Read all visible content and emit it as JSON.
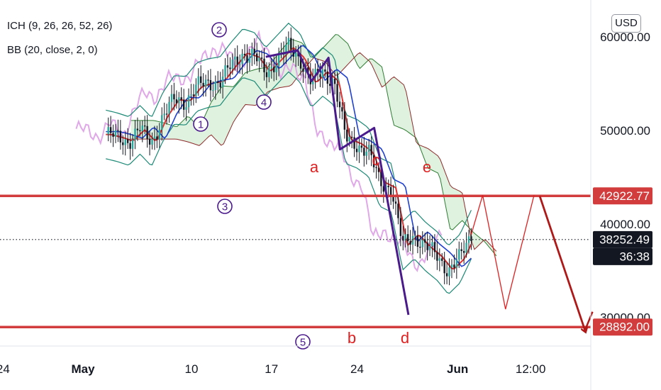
{
  "indicators": {
    "ichimoku": "ICH (9, 26, 26, 52, 26)",
    "bollinger": "BB (20, close, 2, 0)"
  },
  "currency_button": "USD",
  "colors": {
    "level_line": "#d23c3c",
    "projection": "#e02020",
    "wave": "#4a1a8c",
    "arrow": "#b01818",
    "candle": "#131722",
    "price_badge_dark": "#131722"
  },
  "chart_data": {
    "type": "candlestick",
    "x_ticks": [
      "24",
      "May",
      "10",
      "17",
      "24",
      "Jun",
      "12:00"
    ],
    "y_ticks": [
      60000,
      50000,
      40000,
      30000
    ],
    "ylim": [
      27300,
      63000
    ],
    "grid": false,
    "horizontal_levels": [
      42922.77,
      28892.0
    ],
    "price_badges": [
      {
        "label": "42922.77",
        "value": 42922.77,
        "style": "red"
      },
      {
        "label": "38252.49",
        "value": 38252.49,
        "style": "dark"
      },
      {
        "label": "36:38",
        "style": "dark"
      },
      {
        "label": "28892.00",
        "value": 28892.0,
        "style": "red"
      }
    ],
    "current_price": 38252.49,
    "elliott_waves": [
      {
        "label": "1",
        "date": "May 10.5",
        "value": 51500
      },
      {
        "label": "2",
        "date": "May 12",
        "value": 62200
      },
      {
        "label": "3",
        "date": "May 13",
        "value": 42200
      },
      {
        "label": "4",
        "date": "May 16",
        "value": 53400
      },
      {
        "label": "5",
        "date": "May 19",
        "value": 27500
      }
    ],
    "correction_labels": [
      "a",
      "b",
      "c",
      "d",
      "e"
    ],
    "series": [
      {
        "name": "price",
        "values": [
          [
            -7.5,
            49500
          ],
          [
            -6.5,
            49200
          ],
          [
            -5.5,
            48800
          ],
          [
            -4.5,
            50000
          ],
          [
            -3.5,
            48700
          ],
          [
            -2.5,
            51400
          ],
          [
            -1.5,
            53200
          ],
          [
            -0.5,
            53100
          ],
          [
            0.5,
            54600
          ],
          [
            1.5,
            55000
          ],
          [
            2.5,
            55200
          ],
          [
            3.5,
            56800
          ],
          [
            4.5,
            58200
          ],
          [
            5.5,
            57800
          ],
          [
            6.5,
            56200
          ],
          [
            7.5,
            57500
          ],
          [
            8.5,
            58800
          ],
          [
            9.5,
            57700
          ],
          [
            10.5,
            55000
          ],
          [
            11.5,
            56200
          ],
          [
            12.5,
            55200
          ],
          [
            13.5,
            49000
          ],
          [
            14.5,
            48500
          ],
          [
            15.5,
            47600
          ],
          [
            16.5,
            44400
          ],
          [
            17.5,
            43800
          ],
          [
            18.5,
            37600
          ],
          [
            19.5,
            38800
          ],
          [
            20.5,
            37500
          ],
          [
            21.5,
            36500
          ],
          [
            22.5,
            35000
          ],
          [
            23.5,
            36200
          ],
          [
            24.5,
            38800
          ]
        ]
      },
      {
        "name": "wave path",
        "values": [
          [
            6.5,
            57800
          ],
          [
            9.3,
            58500
          ],
          [
            10.5,
            55200
          ],
          [
            12,
            57700
          ],
          [
            13,
            47900
          ],
          [
            16,
            50200
          ],
          [
            19,
            30200
          ]
        ]
      },
      {
        "name": "projection",
        "values": [
          [
            24.5,
            38800
          ],
          [
            25.5,
            43000
          ],
          [
            27.5,
            30800
          ],
          [
            30,
            43000
          ]
        ]
      },
      {
        "name": "forecast arrow",
        "values": [
          [
            30.5,
            42900
          ],
          [
            34.5,
            28400
          ]
        ]
      }
    ]
  }
}
